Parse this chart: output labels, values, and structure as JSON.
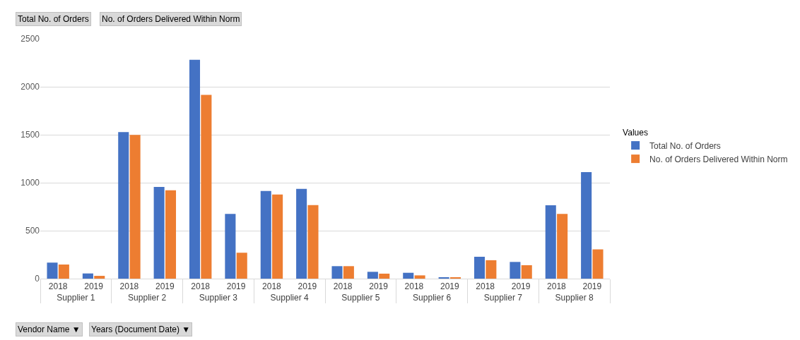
{
  "chart_data": {
    "type": "bar",
    "categories": [
      "2018",
      "2019",
      "2018",
      "2019",
      "2018",
      "2019",
      "2018",
      "2019",
      "2018",
      "2019",
      "2018",
      "2019",
      "2018",
      "2019",
      "2018",
      "2019"
    ],
    "series": [
      {
        "name": "Total No. of Orders",
        "color": "#4472c4",
        "values": [
          167,
          54,
          1527,
          955,
          2281,
          675,
          913,
          936,
          130,
          71,
          61,
          10,
          228,
          174,
          764,
          1110
        ]
      },
      {
        "name": "No. of Orders Delivered Within Norm",
        "color": "#ed7d31",
        "values": [
          147,
          29,
          1498,
          921,
          1915,
          270,
          877,
          766,
          130,
          52,
          34,
          10,
          192,
          140,
          675,
          305
        ]
      }
    ],
    "annotations": [
      "Supplier 1",
      "Supplier 2",
      "Supplier 3",
      "Supplier 4",
      "Supplier 5",
      "Supplier 6",
      "Supplier 7",
      "Supplier 8",
      "Total No. of Orders",
      "No. of Orders Delivered Within Norm",
      "Vendor Name ▼",
      "Years (Document Date) ▼"
    ],
    "legend_title": "Values",
    "legend": "right",
    "ylim": [
      0,
      2500
    ],
    "yticks": [
      0,
      500,
      1000,
      1500,
      2000,
      2500
    ],
    "grid": "y"
  }
}
